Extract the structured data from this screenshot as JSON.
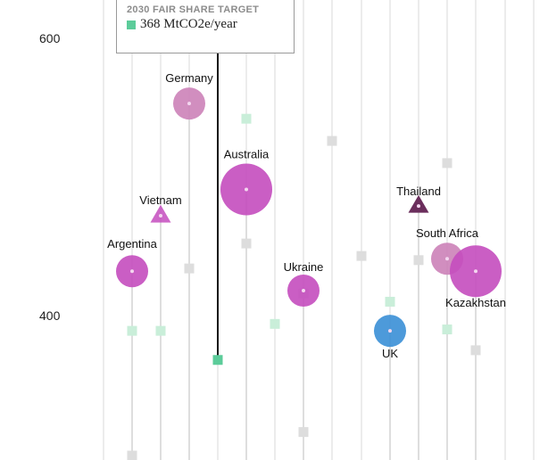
{
  "chart_data": {
    "type": "scatter",
    "y_axis": {
      "ticks": [
        400,
        600
      ]
    },
    "colors": {
      "grid": "#d9d9d9",
      "target_marker": "#c9eed9",
      "target_marker_highlight": "#5ccc9a",
      "other_marker": "#dddddd",
      "magenta": "#c44cbe",
      "pink": "#cc82b8",
      "dark_purple": "#6b2e5c",
      "blue": "#3a8fd6"
    },
    "columns": [
      {
        "targets": [
          {
            "y": 299,
            "kind": "other"
          }
        ]
      },
      {
        "bubble": {
          "label": "Argentina",
          "y": 432,
          "size": "medium",
          "shape": "circle",
          "color": "magenta"
        },
        "targets": [
          {
            "y": 389,
            "kind": "target"
          }
        ]
      },
      {
        "bubble": {
          "label": "Vietnam",
          "y": 472,
          "size": "small",
          "shape": "triangle",
          "color": "magenta"
        },
        "targets": [
          {
            "y": 389,
            "kind": "target"
          }
        ]
      },
      {
        "bubble": {
          "label": "Germany",
          "y": 553,
          "size": "medium",
          "shape": "circle",
          "color": "pink"
        },
        "targets": [
          {
            "y": 434,
            "kind": "other"
          }
        ]
      },
      {
        "targets": [
          {
            "y": 368,
            "kind": "target_highlight"
          }
        ],
        "highlight_line_to": 652
      },
      {
        "bubble": {
          "label": "Australia",
          "y": 491,
          "size": "large",
          "shape": "circle",
          "color": "magenta"
        },
        "targets": [
          {
            "y": 542,
            "kind": "target"
          },
          {
            "y": 452,
            "kind": "other"
          }
        ]
      },
      {
        "targets": [
          {
            "y": 394,
            "kind": "target"
          }
        ]
      },
      {
        "bubble": {
          "label": "Ukraine",
          "y": 418,
          "size": "medium",
          "shape": "circle",
          "color": "magenta"
        },
        "targets": [
          {
            "y": 416,
            "kind": "other"
          },
          {
            "y": 316,
            "kind": "other"
          }
        ]
      },
      {
        "targets": [
          {
            "y": 526,
            "kind": "other"
          }
        ]
      },
      {
        "targets": [
          {
            "y": 443,
            "kind": "other"
          }
        ]
      },
      {
        "bubble": {
          "label": "UK",
          "y": 389,
          "size": "medium",
          "shape": "circle",
          "color": "blue"
        },
        "targets": [
          {
            "y": 410,
            "kind": "target"
          }
        ]
      },
      {
        "bubble": {
          "label": "Thailand",
          "y": 479,
          "size": "small",
          "shape": "triangle",
          "color": "dark_purple"
        },
        "targets": [
          {
            "y": 440,
            "kind": "other"
          }
        ]
      },
      {
        "bubble": {
          "label": "South Africa",
          "y": 441,
          "size": "medium",
          "shape": "circle",
          "color": "pink"
        },
        "targets": [
          {
            "y": 510,
            "kind": "other"
          },
          {
            "y": 390,
            "kind": "target"
          }
        ]
      },
      {
        "bubble": {
          "label": "Kazakhstan",
          "y": 432,
          "size": "large",
          "shape": "circle",
          "color": "magenta"
        },
        "targets": [
          {
            "y": 375,
            "kind": "other"
          }
        ]
      }
    ]
  },
  "tooltip": {
    "title": "2030 FAIR SHARE TARGET",
    "value": "368 MtCO2e/year"
  }
}
